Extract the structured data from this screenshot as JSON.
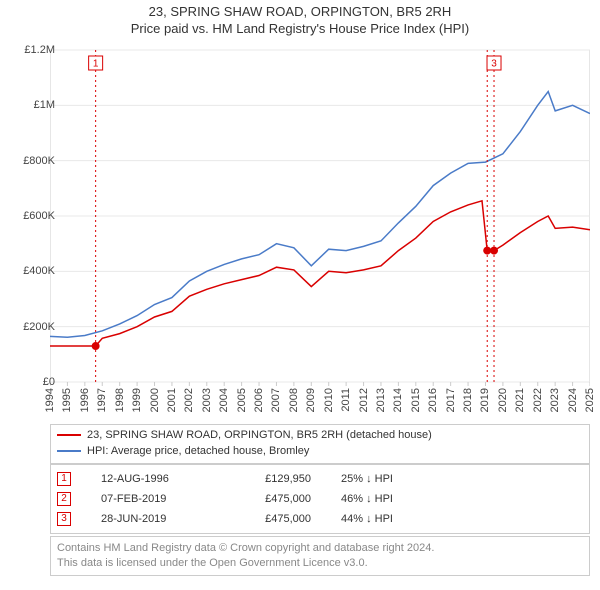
{
  "title_main": "23, SPRING SHAW ROAD, ORPINGTON, BR5 2RH",
  "title_sub": "Price paid vs. HM Land Registry's House Price Index (HPI)",
  "title_fontsize": 13,
  "chart": {
    "type": "line",
    "background_color": "#ffffff",
    "plot_border_color": "#cccccc",
    "grid_color": "#e8e8e8",
    "x_axis": {
      "min": 1994,
      "max": 2025,
      "tick_step": 1,
      "tick_labels": [
        "1994",
        "1995",
        "1996",
        "1997",
        "1998",
        "1999",
        "2000",
        "2001",
        "2002",
        "2003",
        "2004",
        "2005",
        "2006",
        "2007",
        "2008",
        "2009",
        "2010",
        "2011",
        "2012",
        "2013",
        "2014",
        "2015",
        "2016",
        "2017",
        "2018",
        "2019",
        "2020",
        "2021",
        "2022",
        "2023",
        "2024",
        "2025"
      ],
      "label_fontsize": 11,
      "label_rotation": -90
    },
    "y_axis": {
      "min": 0,
      "max": 1200000,
      "tick_step": 200000,
      "tick_labels": [
        "£0",
        "£200K",
        "£400K",
        "£600K",
        "£800K",
        "£1M",
        "£1.2M"
      ],
      "label_fontsize": 11
    },
    "series": [
      {
        "name": "price_paid",
        "label": "23, SPRING SHAW ROAD, ORPINGTON, BR5 2RH (detached house)",
        "color": "#d90000",
        "line_width": 1.5,
        "data": [
          [
            1994,
            130000
          ],
          [
            1995,
            130000
          ],
          [
            1996,
            130000
          ],
          [
            1996.62,
            129950
          ],
          [
            1997,
            158000
          ],
          [
            1998,
            175000
          ],
          [
            1999,
            200000
          ],
          [
            2000,
            235000
          ],
          [
            2001,
            255000
          ],
          [
            2002,
            310000
          ],
          [
            2003,
            335000
          ],
          [
            2004,
            355000
          ],
          [
            2005,
            370000
          ],
          [
            2006,
            385000
          ],
          [
            2007,
            415000
          ],
          [
            2008,
            405000
          ],
          [
            2009,
            345000
          ],
          [
            2010,
            400000
          ],
          [
            2011,
            395000
          ],
          [
            2012,
            405000
          ],
          [
            2013,
            420000
          ],
          [
            2014,
            475000
          ],
          [
            2015,
            520000
          ],
          [
            2016,
            580000
          ],
          [
            2017,
            615000
          ],
          [
            2018,
            640000
          ],
          [
            2018.8,
            655000
          ],
          [
            2019.1,
            475000
          ],
          [
            2019.49,
            475000
          ],
          [
            2020,
            495000
          ],
          [
            2021,
            540000
          ],
          [
            2022,
            580000
          ],
          [
            2022.6,
            600000
          ],
          [
            2023,
            555000
          ],
          [
            2024,
            560000
          ],
          [
            2025,
            550000
          ]
        ]
      },
      {
        "name": "hpi",
        "label": "HPI: Average price, detached house, Bromley",
        "color": "#4a7bc8",
        "line_width": 1.5,
        "data": [
          [
            1994,
            165000
          ],
          [
            1995,
            162000
          ],
          [
            1996,
            168000
          ],
          [
            1997,
            185000
          ],
          [
            1998,
            210000
          ],
          [
            1999,
            240000
          ],
          [
            2000,
            280000
          ],
          [
            2001,
            305000
          ],
          [
            2002,
            365000
          ],
          [
            2003,
            400000
          ],
          [
            2004,
            425000
          ],
          [
            2005,
            445000
          ],
          [
            2006,
            460000
          ],
          [
            2007,
            500000
          ],
          [
            2008,
            485000
          ],
          [
            2009,
            420000
          ],
          [
            2010,
            480000
          ],
          [
            2011,
            475000
          ],
          [
            2012,
            490000
          ],
          [
            2013,
            510000
          ],
          [
            2014,
            575000
          ],
          [
            2015,
            635000
          ],
          [
            2016,
            710000
          ],
          [
            2017,
            755000
          ],
          [
            2018,
            790000
          ],
          [
            2019,
            795000
          ],
          [
            2020,
            825000
          ],
          [
            2021,
            905000
          ],
          [
            2022,
            1000000
          ],
          [
            2022.6,
            1050000
          ],
          [
            2023,
            980000
          ],
          [
            2024,
            1000000
          ],
          [
            2025,
            970000
          ]
        ]
      }
    ],
    "markers": [
      {
        "n": "1",
        "x": 1996.62,
        "y": 129950,
        "color": "#d90000",
        "dot": true
      },
      {
        "n": "2",
        "x": 2019.1,
        "y": 475000,
        "color": "#d90000",
        "dot": true,
        "offset_badge": true
      },
      {
        "n": "3",
        "x": 2019.49,
        "y": 475000,
        "color": "#d90000",
        "dot": true
      }
    ],
    "marker_badge": {
      "fill": "#ffffff",
      "border_width": 1,
      "fontsize": 10,
      "size": 14
    }
  },
  "legend": {
    "border_color": "#cccccc",
    "fontsize": 11,
    "items": [
      {
        "color": "#d90000",
        "label": "23, SPRING SHAW ROAD, ORPINGTON, BR5 2RH (detached house)"
      },
      {
        "color": "#4a7bc8",
        "label": "HPI: Average price, detached house, Bromley"
      }
    ]
  },
  "transactions": {
    "border_color": "#cccccc",
    "fontsize": 11,
    "rows": [
      {
        "n": "1",
        "date": "12-AUG-1996",
        "price": "£129,950",
        "delta": "25% ↓ HPI",
        "color": "#d90000"
      },
      {
        "n": "2",
        "date": "07-FEB-2019",
        "price": "£475,000",
        "delta": "46% ↓ HPI",
        "color": "#d90000"
      },
      {
        "n": "3",
        "date": "28-JUN-2019",
        "price": "£475,000",
        "delta": "44% ↓ HPI",
        "color": "#d90000"
      }
    ]
  },
  "attribution": {
    "line1": "Contains HM Land Registry data © Crown copyright and database right 2024.",
    "line2": "This data is licensed under the Open Government Licence v3.0.",
    "text_color": "#888888",
    "border_color": "#cccccc",
    "fontsize": 11
  }
}
